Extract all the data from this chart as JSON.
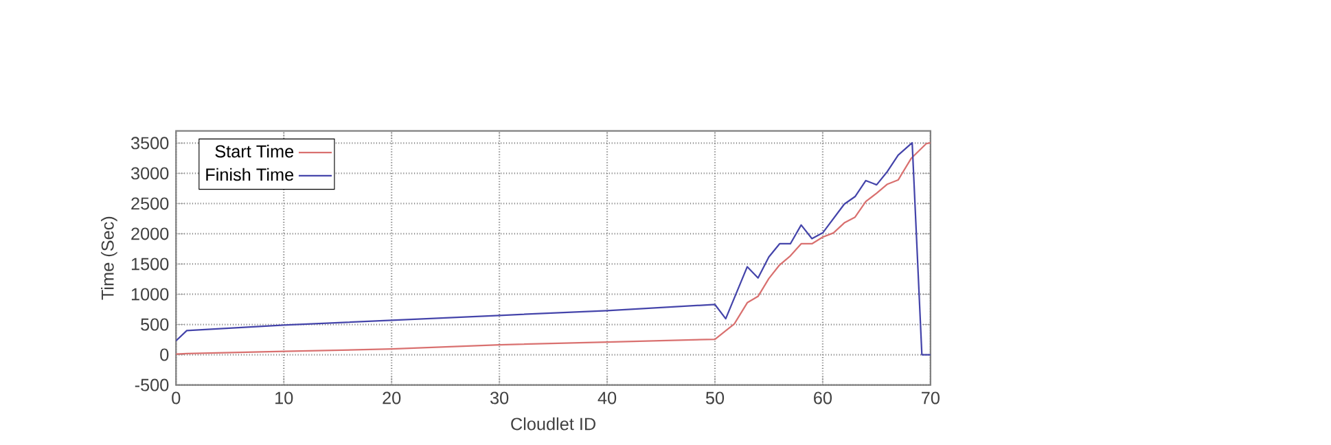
{
  "chart_data": {
    "type": "line",
    "xlabel": "Cloudlet ID",
    "ylabel": "Time (Sec)",
    "xlim": [
      0,
      70
    ],
    "ylim": [
      -500,
      3700
    ],
    "xticks": [
      0,
      10,
      20,
      30,
      40,
      50,
      60,
      70
    ],
    "yticks": [
      -500,
      0,
      500,
      1000,
      1500,
      2000,
      2500,
      3000,
      3500
    ],
    "grid": true,
    "legend": "top left",
    "series": [
      {
        "name": "Start Time",
        "color": "#d9706f",
        "x": [
          0,
          1,
          10,
          20,
          30,
          40,
          50,
          51.8,
          53,
          54,
          55,
          56,
          57,
          58,
          59,
          60,
          61,
          62,
          63,
          64,
          65,
          66,
          67,
          68.2,
          69.6,
          70
        ],
        "values": [
          10,
          20,
          55,
          95,
          165,
          210,
          255,
          510,
          860,
          965,
          1260,
          1485,
          1635,
          1835,
          1835,
          1945,
          2015,
          2180,
          2275,
          2535,
          2670,
          2820,
          2890,
          3245,
          3490,
          3505
        ]
      },
      {
        "name": "Finish Time",
        "color": "#4444aa",
        "x": [
          0,
          1,
          10,
          20,
          30,
          40,
          50,
          51,
          53,
          54,
          55,
          56,
          57,
          58,
          59,
          60,
          62,
          63,
          64,
          65,
          66,
          67,
          68.3,
          69.2,
          70
        ],
        "values": [
          230,
          400,
          490,
          570,
          650,
          730,
          830,
          595,
          1455,
          1270,
          1615,
          1835,
          1835,
          2145,
          1920,
          2015,
          2490,
          2615,
          2880,
          2810,
          3030,
          3300,
          3505,
          0,
          0
        ]
      }
    ]
  }
}
